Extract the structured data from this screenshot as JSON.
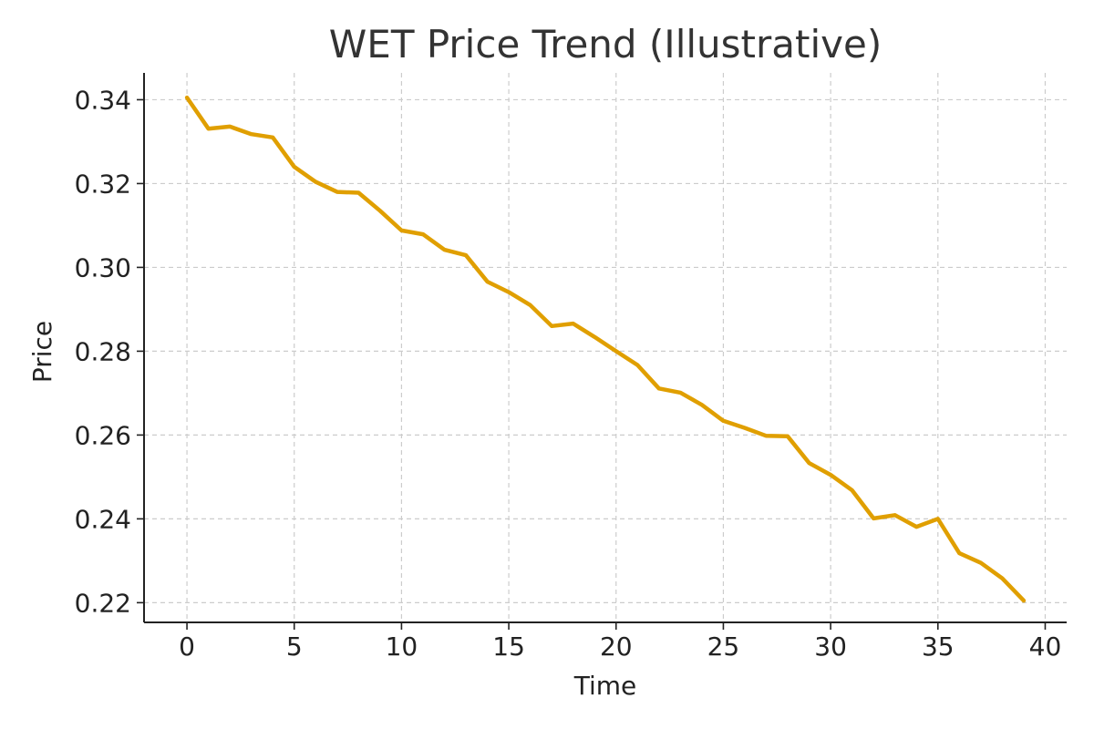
{
  "chart_data": {
    "type": "line",
    "title": "WET Price Trend (Illustrative)",
    "xlabel": "Time",
    "ylabel": "Price",
    "xlim": [
      -2,
      41
    ],
    "ylim": [
      0.2153,
      0.3464
    ],
    "xticks": [
      0,
      5,
      10,
      15,
      20,
      25,
      30,
      35,
      40
    ],
    "yticks": [
      0.22,
      0.24,
      0.26,
      0.28,
      0.3,
      0.32,
      0.34
    ],
    "ytick_labels": [
      "0.22",
      "0.24",
      "0.26",
      "0.28",
      "0.30",
      "0.32",
      "0.34"
    ],
    "grid": true,
    "grid_style": "dashed",
    "colors": {
      "line": "#E09F00",
      "grid": "#cccccc",
      "axis": "#222222",
      "title": "#333333",
      "text": "#222222"
    },
    "series": [
      {
        "x": [
          0,
          1,
          2,
          3,
          4,
          5,
          6,
          7,
          8,
          9,
          10,
          11,
          12,
          13,
          14,
          15,
          16,
          17,
          18,
          19,
          20,
          21,
          22,
          23,
          24,
          25,
          26,
          27,
          28,
          29,
          30,
          31,
          32,
          33,
          34,
          35,
          36,
          37,
          38,
          39
        ],
        "values": [
          0.3405,
          0.3331,
          0.3336,
          0.3318,
          0.331,
          0.324,
          0.3204,
          0.318,
          0.3178,
          0.3135,
          0.3088,
          0.3079,
          0.3042,
          0.3029,
          0.2966,
          0.2941,
          0.291,
          0.286,
          0.2866,
          0.2834,
          0.28,
          0.2767,
          0.2711,
          0.2701,
          0.2672,
          0.2634,
          0.2617,
          0.2598,
          0.2597,
          0.2533,
          0.2505,
          0.2468,
          0.2401,
          0.2409,
          0.2381,
          0.24,
          0.2318,
          0.2295,
          0.2258,
          0.2205
        ]
      }
    ]
  }
}
